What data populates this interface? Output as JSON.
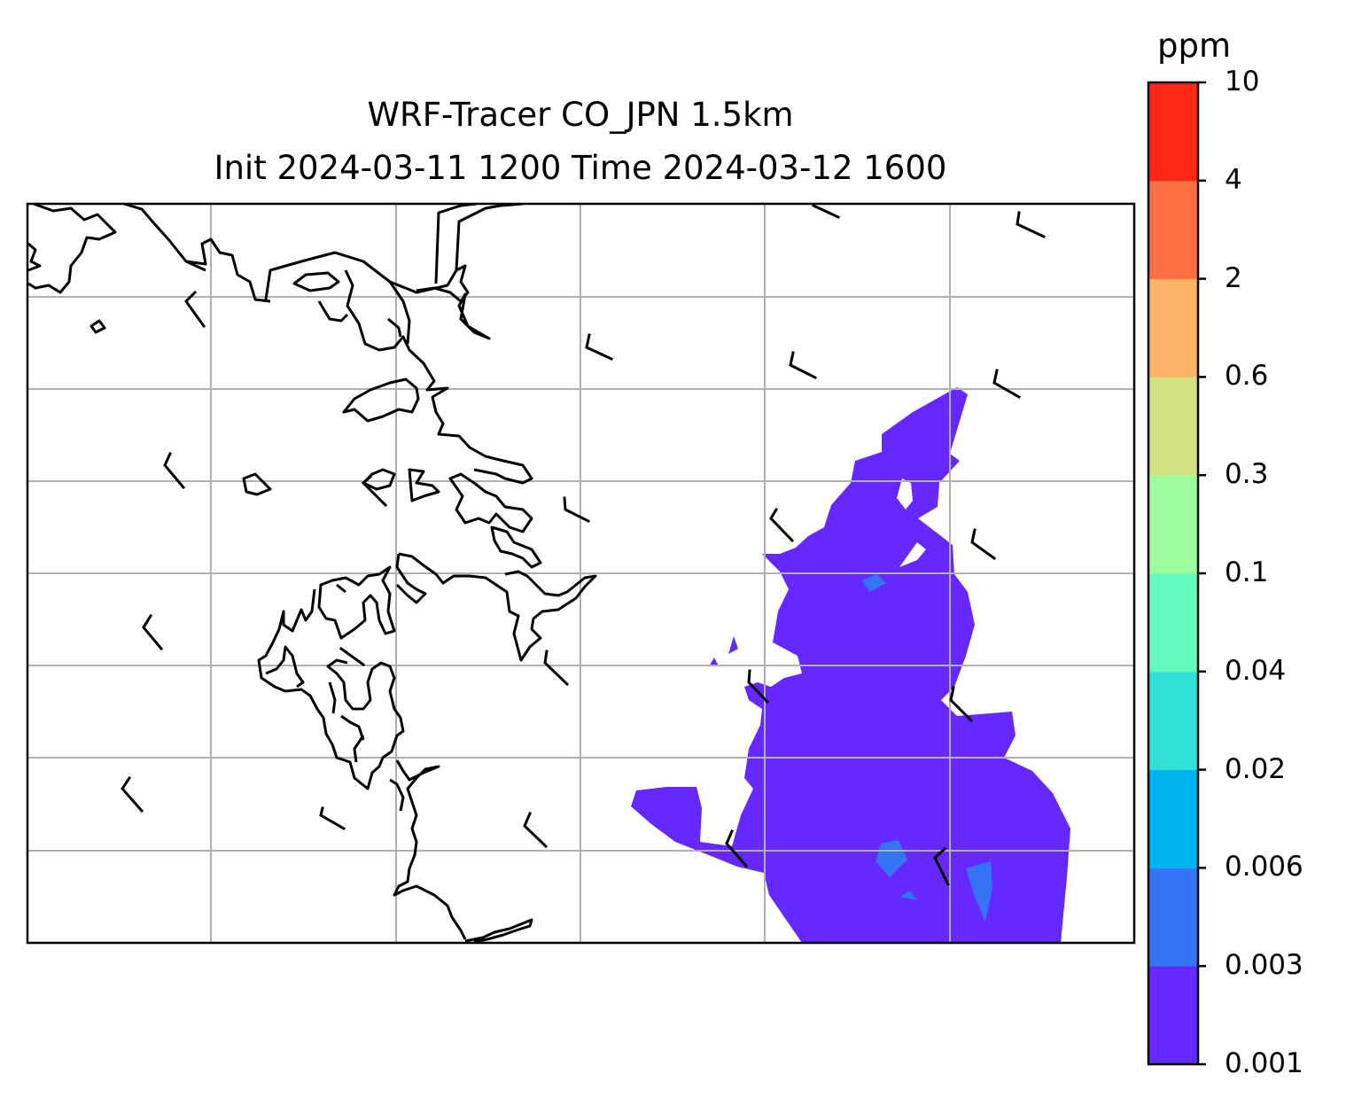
{
  "title": {
    "line1": "WRF-Tracer CO_JPN 1.5km",
    "line2": "Init 2024-03-11 1200 Time 2024-03-12 1600"
  },
  "colorbar": {
    "unit": "ppm",
    "levels": [
      "0.001",
      "0.003",
      "0.006",
      "0.02",
      "0.04",
      "0.1",
      "0.3",
      "0.6",
      "2",
      "4",
      "10"
    ],
    "colors": [
      "#6528ff",
      "#3475f5",
      "#01b4ee",
      "#31e1d8",
      "#66fbbd",
      "#9cfd9c",
      "#d0e282",
      "#feb466",
      "#fe7042",
      "#fe2615"
    ]
  },
  "map": {
    "grid": "on",
    "coastline_color": "#000000",
    "field_fill_color": "#6528ff",
    "field_high_color": "#3475f5"
  }
}
